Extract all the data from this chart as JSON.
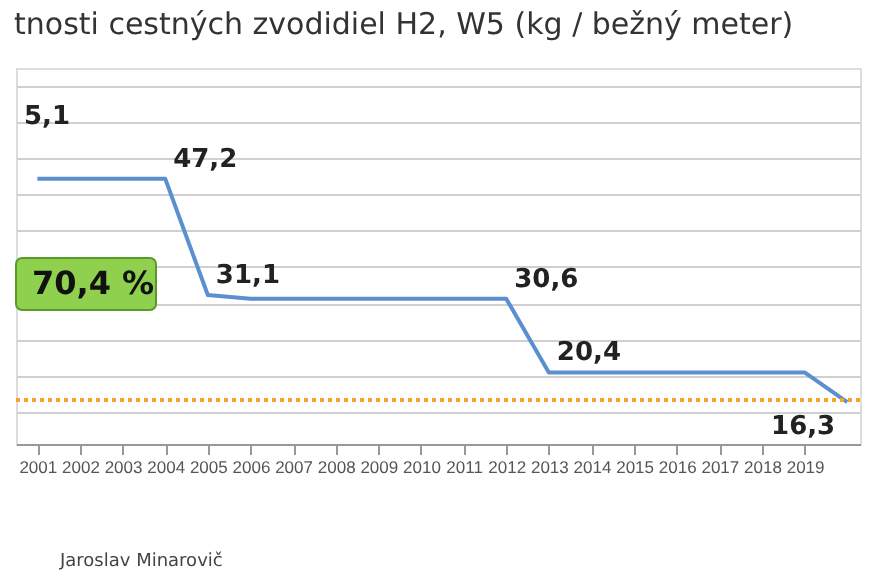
{
  "chart_data": {
    "type": "line",
    "title": "tnosti cestných zvodidiel H2, W5 (kg / bežný meter)",
    "x": [
      2001,
      2002,
      2003,
      2004,
      2005,
      2006,
      2007,
      2008,
      2009,
      2010,
      2011,
      2012,
      2013,
      2014,
      2015,
      2016,
      2017,
      2018,
      2019,
      2020
    ],
    "series": [
      {
        "color": "#5b8fd0",
        "values": [
          47.2,
          47.2,
          47.2,
          47.2,
          31.1,
          30.6,
          30.6,
          30.6,
          30.6,
          30.6,
          30.6,
          30.6,
          20.4,
          20.4,
          20.4,
          20.4,
          20.4,
          20.4,
          20.4,
          16.3
        ],
        "value_labels": [
          null,
          null,
          null,
          "47,2",
          "31,1",
          null,
          null,
          null,
          null,
          null,
          null,
          "30,6",
          "20,4",
          null,
          null,
          null,
          null,
          null,
          null,
          "16,3"
        ]
      }
    ],
    "xlim": [
      2000.5,
      2020.3
    ],
    "xticks": [
      2001,
      2002,
      2003,
      2004,
      2005,
      2006,
      2007,
      2008,
      2009,
      2010,
      2011,
      2012,
      2013,
      2014,
      2015,
      2016,
      2017,
      2018,
      2019
    ],
    "ylim": [
      10.5,
      62.5
    ],
    "yticks": [
      {
        "value": 15,
        "label": null
      },
      {
        "value": 20,
        "label": null
      },
      {
        "value": 25,
        "label": null
      },
      {
        "value": 30,
        "label": null
      },
      {
        "value": 35,
        "label": null
      },
      {
        "value": 40,
        "label": null
      },
      {
        "value": 45,
        "label": null
      },
      {
        "value": 50,
        "label": null
      },
      {
        "value": 55,
        "label": null
      },
      {
        "value": 60,
        "label": null
      }
    ],
    "grid": "y",
    "tick_labels": "x",
    "marker": "none",
    "line_style": "solid",
    "ref_lines": [
      {
        "axis": "y",
        "value": 16.6,
        "label": null,
        "color": "#f5a623",
        "line_style": "dotted"
      }
    ],
    "annotations": [
      "5,1",
      "70,4 %",
      "Jaroslav Minarovič"
    ]
  }
}
